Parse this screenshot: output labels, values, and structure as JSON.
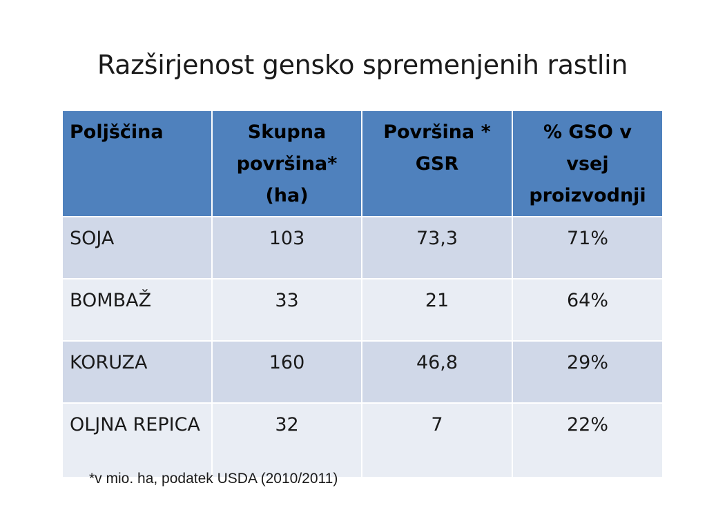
{
  "title": "Razširjenost gensko spremenjenih rastlin",
  "table": {
    "headers": [
      "Poljščina",
      "Skupna površina* (ha)",
      "Površina * GSR",
      "% GSO v vsej proizvodnji"
    ],
    "rows": [
      [
        "SOJA",
        "103",
        "73,3",
        "71%"
      ],
      [
        "BOMBAŽ",
        "33",
        "21",
        "64%"
      ],
      [
        "KORUZA",
        "160",
        "46,8",
        "29%"
      ],
      [
        "OLJNA REPICA",
        "32",
        "7",
        "22%"
      ]
    ]
  },
  "footnote": "*v mio. ha, podatek USDA (2010/2011)",
  "colors": {
    "header_bg": "#4f81bd",
    "row_band_dark": "#d0d8e8",
    "row_band_light": "#e9edf4"
  }
}
